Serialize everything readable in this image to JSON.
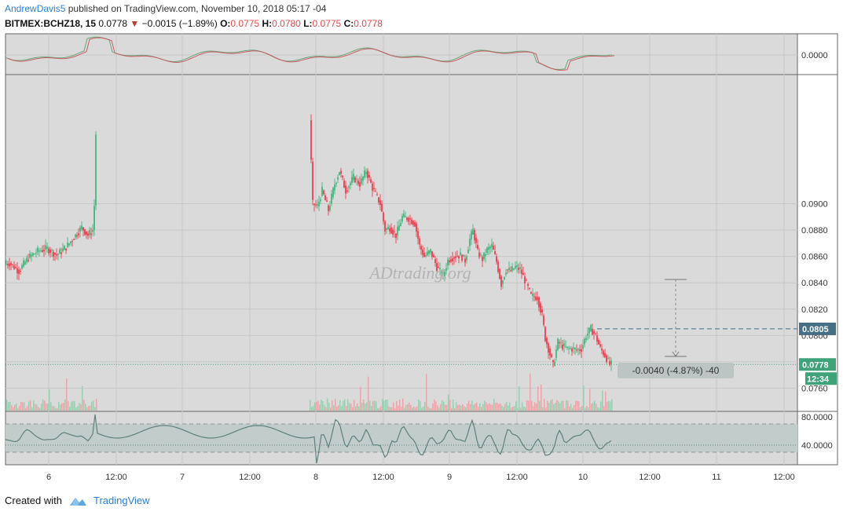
{
  "header": {
    "author": "AndrewDavis5",
    "published": "published on TradingView.com, November 10, 2018 05:17 -04",
    "symbol": "BITMEX:BCHZ18, 15",
    "last": "0.0778",
    "change": "−0.0015 (−1.89%)",
    "ohlc": {
      "o_label": "O:",
      "o": "0.0775",
      "h_label": "H:",
      "h": "0.0780",
      "l_label": "L:",
      "l": "0.0775",
      "c_label": "C:",
      "c": "0.0778"
    }
  },
  "watermark": "ADtrading.org",
  "footer": {
    "created_with": "Created with",
    "brand": "TradingView"
  },
  "colors": {
    "up": "#53b987",
    "down": "#eb4d5c",
    "grid": "#c8c8c8",
    "bg": "#dadada",
    "rsi_band": "#c2cdcb",
    "rsi_line": "#5f7f7d",
    "last_price": "#3fa37a",
    "marker": "#456f84"
  },
  "chart_data": {
    "type": "candlestick",
    "price_axis": {
      "ticks": [
        "0.0900",
        "0.0880",
        "0.0860",
        "0.0840",
        "0.0820",
        "0.0800",
        "0.0780",
        "0.0760"
      ],
      "ylim": [
        0.0743,
        0.0998
      ]
    },
    "time_axis": {
      "ticks": [
        "6",
        "12:00",
        "7",
        "12:00",
        "8",
        "12:00",
        "9",
        "12:00",
        "10",
        "12:00",
        "11",
        "12:00"
      ]
    },
    "price_path": [
      [
        0,
        0.0853
      ],
      [
        12,
        0.0855
      ],
      [
        24,
        0.0849
      ],
      [
        36,
        0.0859
      ],
      [
        48,
        0.0864
      ],
      [
        60,
        0.0866
      ],
      [
        72,
        0.0861
      ],
      [
        84,
        0.0867
      ],
      [
        96,
        0.0876
      ],
      [
        104,
        0.0882
      ],
      [
        112,
        0.0876
      ],
      [
        118,
        0.088
      ],
      [
        121,
        0.0908
      ],
      [
        123,
        0.0998
      ],
      [
        392,
        0.0995
      ],
      [
        398,
        0.09
      ],
      [
        404,
        0.0898
      ],
      [
        410,
        0.091
      ],
      [
        418,
        0.0895
      ],
      [
        426,
        0.0915
      ],
      [
        432,
        0.0925
      ],
      [
        440,
        0.091
      ],
      [
        450,
        0.092
      ],
      [
        458,
        0.0915
      ],
      [
        466,
        0.0925
      ],
      [
        474,
        0.0912
      ],
      [
        484,
        0.09
      ],
      [
        490,
        0.088
      ],
      [
        496,
        0.0882
      ],
      [
        504,
        0.0876
      ],
      [
        512,
        0.089
      ],
      [
        520,
        0.0889
      ],
      [
        528,
        0.0885
      ],
      [
        534,
        0.0868
      ],
      [
        540,
        0.086
      ],
      [
        548,
        0.0864
      ],
      [
        556,
        0.0852
      ],
      [
        564,
        0.0845
      ],
      [
        570,
        0.0857
      ],
      [
        578,
        0.086
      ],
      [
        586,
        0.0861
      ],
      [
        592,
        0.0857
      ],
      [
        598,
        0.0873
      ],
      [
        602,
        0.088
      ],
      [
        608,
        0.0863
      ],
      [
        614,
        0.0858
      ],
      [
        620,
        0.0865
      ],
      [
        626,
        0.0868
      ],
      [
        632,
        0.0856
      ],
      [
        638,
        0.0839
      ],
      [
        644,
        0.085
      ],
      [
        650,
        0.0849
      ],
      [
        656,
        0.0852
      ],
      [
        662,
        0.085
      ],
      [
        668,
        0.0842
      ],
      [
        676,
        0.083
      ],
      [
        684,
        0.0829
      ],
      [
        690,
        0.0815
      ],
      [
        694,
        0.0798
      ],
      [
        698,
        0.079
      ],
      [
        704,
        0.0777
      ],
      [
        710,
        0.0795
      ],
      [
        716,
        0.0792
      ],
      [
        722,
        0.079
      ],
      [
        728,
        0.079
      ],
      [
        734,
        0.0789
      ],
      [
        740,
        0.079
      ],
      [
        746,
        0.08
      ],
      [
        752,
        0.0805
      ],
      [
        758,
        0.08
      ],
      [
        764,
        0.079
      ],
      [
        770,
        0.0785
      ],
      [
        776,
        0.0778
      ],
      [
        780,
        0.0778
      ]
    ],
    "volume_ratio_max": 0.5,
    "rsi": {
      "levels": [
        "80.0000",
        "40.0000"
      ],
      "band": [
        70,
        30
      ]
    },
    "momentum_panel": {
      "label": "0.0000"
    },
    "annotations": {
      "last_price_label": "0.0778",
      "last_price_value": 0.0778,
      "countdown": "12:34",
      "measure_high_label": "0.0805",
      "measure_high": 0.0805,
      "measure_text": "-0.0040 (-4.87%) -40"
    }
  }
}
